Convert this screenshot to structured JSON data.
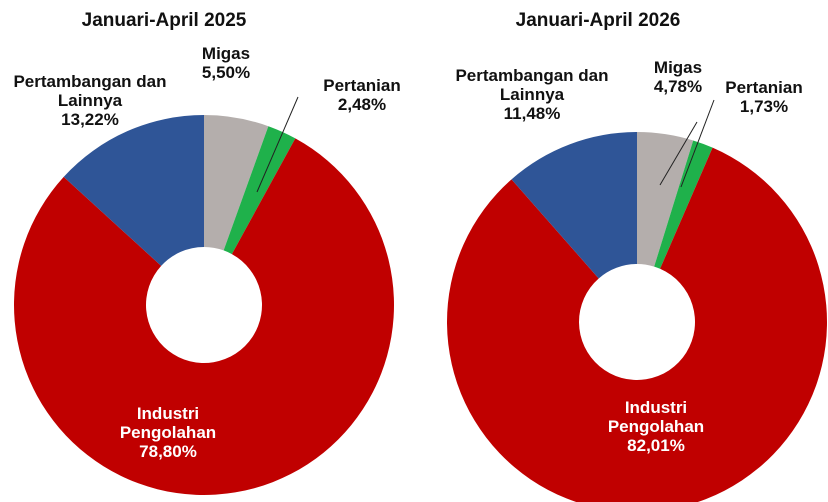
{
  "chart_data": [
    {
      "type": "pie",
      "title": "Januari-April 2025",
      "categories": [
        "Migas",
        "Pertanian",
        "Industri Pengolahan",
        "Pertambangan dan Lainnya"
      ],
      "values": [
        5.5,
        2.48,
        78.8,
        13.22
      ],
      "value_labels": [
        "5,50%",
        "2,48%",
        "78,80%",
        "13,22%"
      ],
      "colors": [
        "#b4aeac",
        "#1fb14b",
        "#c00000",
        "#2f5597"
      ]
    },
    {
      "type": "pie",
      "title": "Januari-April 2026",
      "categories": [
        "Migas",
        "Pertanian",
        "Industri Pengolahan",
        "Pertambangan dan Lainnya"
      ],
      "values": [
        4.78,
        1.73,
        82.01,
        11.48
      ],
      "value_labels": [
        "4,78%",
        "1,73%",
        "82,01%",
        "11,48%"
      ],
      "colors": [
        "#b4aeac",
        "#1fb14b",
        "#c00000",
        "#2f5597"
      ]
    }
  ]
}
